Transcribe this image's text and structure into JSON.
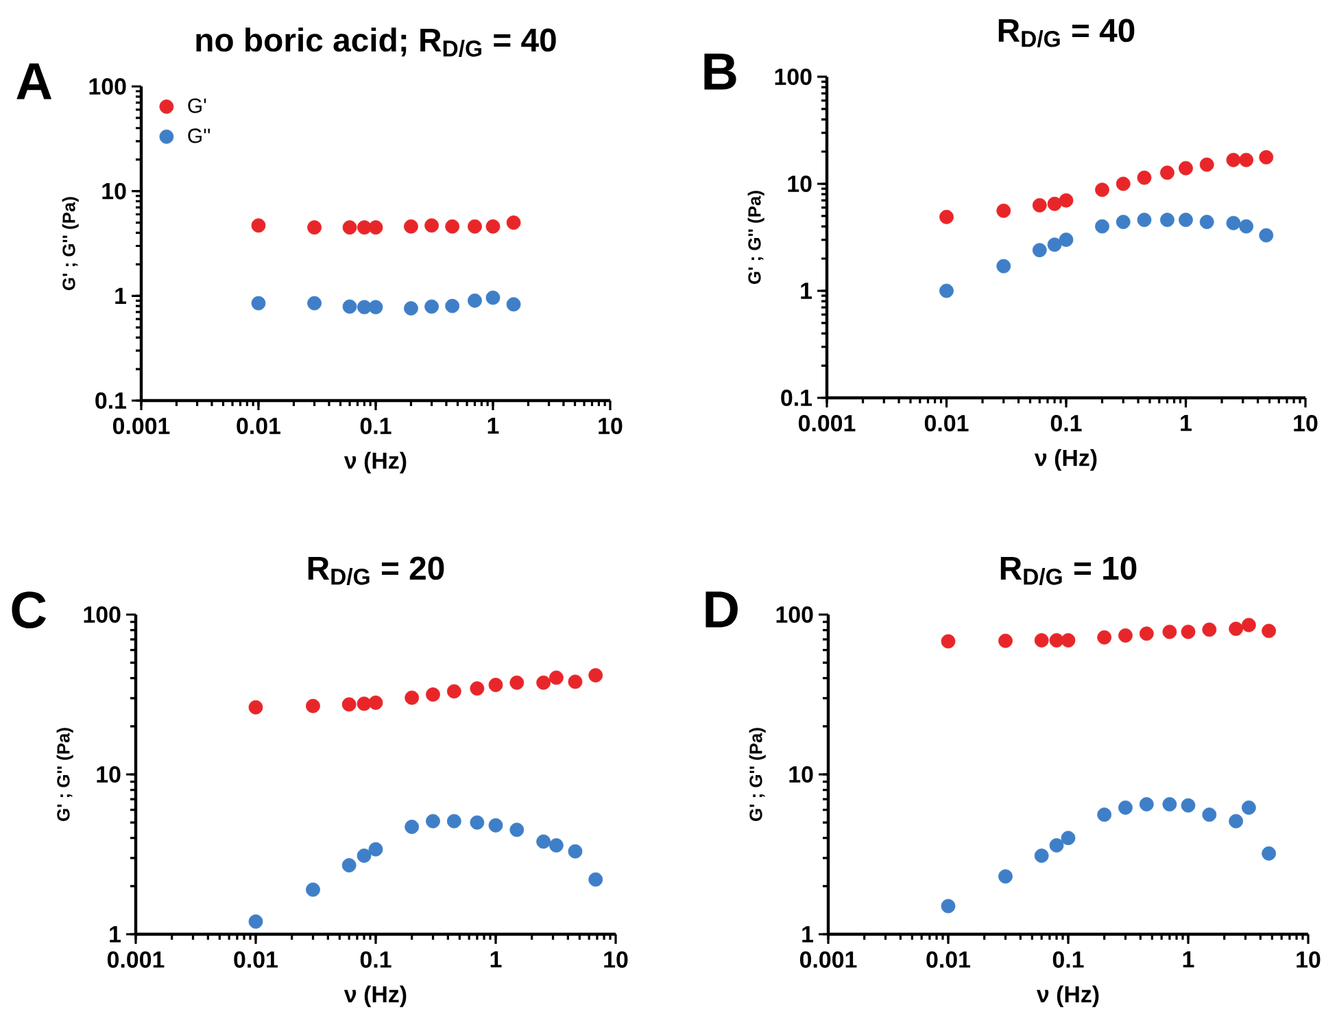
{
  "chart_data": [
    {
      "type": "scatter",
      "title": "no boric acid; R$_{D/G}$ = 40",
      "xlabel": "ν (Hz)",
      "ylabel": "G' ; G'' (Pa)",
      "annotations": [
        "A"
      ],
      "log": "xy",
      "marker": "circle",
      "legend": "top left",
      "grid": false,
      "xlim": [
        0.001,
        10
      ],
      "xticks": [
        0.001,
        0.01,
        0.1,
        1,
        10
      ],
      "ylim": [
        0.1,
        100
      ],
      "yticks": [
        0.1,
        1,
        10,
        100
      ],
      "x": [
        0.01,
        0.03,
        0.06,
        0.08,
        0.1,
        0.2,
        0.3,
        0.45,
        0.7,
        1,
        1.5
      ],
      "series": [
        {
          "name": "G'",
          "color": "#e8262a",
          "values": [
            4.7,
            4.5,
            4.5,
            4.5,
            4.5,
            4.6,
            4.7,
            4.6,
            4.6,
            4.6,
            5.0
          ]
        },
        {
          "name": "G''",
          "color": "#3f7fc8",
          "values": [
            0.85,
            0.85,
            0.79,
            0.78,
            0.78,
            0.76,
            0.79,
            0.8,
            0.9,
            0.96,
            0.83
          ]
        }
      ]
    },
    {
      "type": "scatter",
      "title": "R$_{D/G}$ = 40",
      "xlabel": "ν (Hz)",
      "ylabel": "G' ; G'' (Pa)",
      "annotations": [
        "B"
      ],
      "log": "xy",
      "marker": "circle",
      "grid": false,
      "xlim": [
        0.001,
        10
      ],
      "xticks": [
        0.001,
        0.01,
        0.1,
        1,
        10
      ],
      "ylim": [
        0.1,
        100
      ],
      "yticks": [
        0.1,
        1,
        10,
        100
      ],
      "x": [
        0.01,
        0.03,
        0.06,
        0.08,
        0.1,
        0.2,
        0.3,
        0.45,
        0.7,
        1,
        1.5,
        2.5,
        3.2,
        4.7
      ],
      "series": [
        {
          "color": "#e8262a",
          "values": [
            4.9,
            5.6,
            6.3,
            6.5,
            7.0,
            8.8,
            10,
            11.4,
            12.7,
            14,
            15.1,
            16.7,
            16.7,
            17.7
          ]
        },
        {
          "color": "#3f7fc8",
          "values": [
            1.0,
            1.7,
            2.4,
            2.7,
            3.0,
            4.0,
            4.4,
            4.6,
            4.6,
            4.6,
            4.4,
            4.3,
            4.0,
            3.3
          ]
        }
      ]
    },
    {
      "type": "scatter",
      "title": "R$_{D/G}$ = 20",
      "xlabel": "ν (Hz)",
      "ylabel": "G' ; G'' (Pa)",
      "annotations": [
        "C"
      ],
      "log": "xy",
      "marker": "circle",
      "grid": false,
      "xlim": [
        0.001,
        10
      ],
      "xticks": [
        0.001,
        0.01,
        0.1,
        1,
        10
      ],
      "ylim": [
        1,
        100
      ],
      "yticks": [
        1,
        10,
        100
      ],
      "x": [
        0.01,
        0.03,
        0.06,
        0.08,
        0.1,
        0.2,
        0.3,
        0.45,
        0.7,
        1,
        1.5,
        2.5,
        3.2,
        4.6,
        6.8
      ],
      "series": [
        {
          "color": "#e8262a",
          "values": [
            26.3,
            26.8,
            27.4,
            27.7,
            28.1,
            30.2,
            31.6,
            33.1,
            34.5,
            36.3,
            37.5,
            37.5,
            40.3,
            38.0,
            41.7
          ]
        },
        {
          "color": "#3f7fc8",
          "values": [
            1.2,
            1.9,
            2.7,
            3.1,
            3.4,
            4.7,
            5.1,
            5.1,
            5.0,
            4.8,
            4.5,
            3.8,
            3.6,
            3.3,
            2.2
          ]
        }
      ]
    },
    {
      "type": "scatter",
      "title": "R$_{D/G}$ = 10",
      "xlabel": "ν (Hz)",
      "ylabel": "G' ; G'' (Pa)",
      "annotations": [
        "D"
      ],
      "log": "xy",
      "marker": "circle",
      "grid": false,
      "xlim": [
        0.001,
        10
      ],
      "xticks": [
        0.001,
        0.01,
        0.1,
        1,
        10
      ],
      "ylim": [
        1,
        100
      ],
      "yticks": [
        1,
        10,
        100
      ],
      "x": [
        0.01,
        0.03,
        0.06,
        0.08,
        0.1,
        0.2,
        0.3,
        0.45,
        0.7,
        1,
        1.5,
        2.5,
        3.2,
        4.7
      ],
      "series": [
        {
          "color": "#e8262a",
          "values": [
            68,
            68.5,
            69,
            69,
            69,
            72,
            74,
            76,
            78,
            78,
            80.5,
            81.5,
            86,
            79
          ]
        },
        {
          "color": "#3f7fc8",
          "values": [
            1.5,
            2.3,
            3.1,
            3.6,
            4.0,
            5.6,
            6.2,
            6.5,
            6.5,
            6.4,
            5.6,
            5.1,
            6.2,
            3.2
          ]
        }
      ]
    }
  ]
}
